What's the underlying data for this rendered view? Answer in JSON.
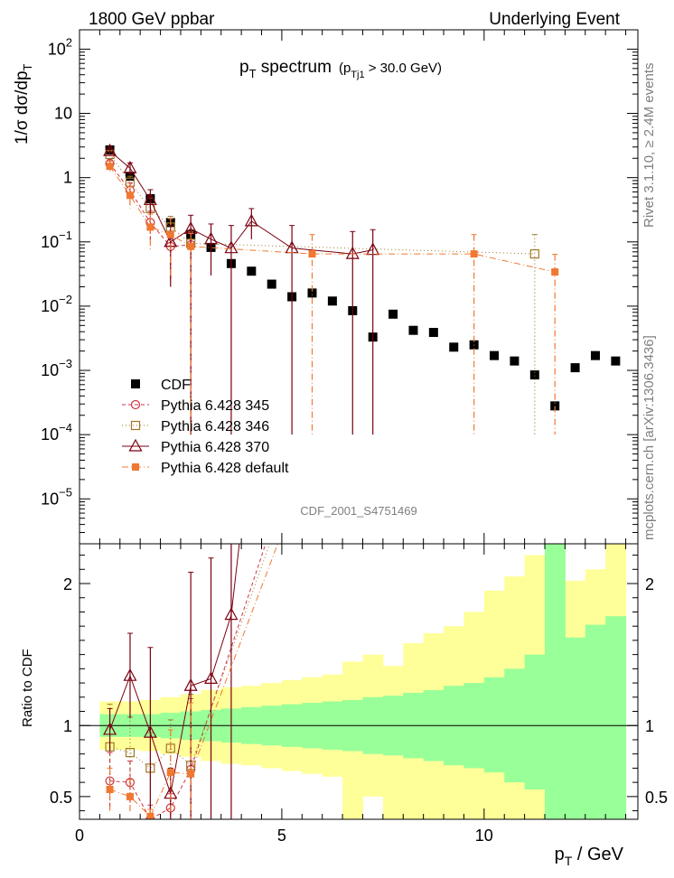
{
  "header": {
    "left": "1800 GeV ppbar",
    "right": "Underlying Event"
  },
  "side_text": {
    "rivet": "Rivet 3.1.10, ≥ 2.4M events",
    "mcplots": "mcplots.cern.ch [arXiv:1306.3436]"
  },
  "watermark": "CDF_2001_S4751469",
  "colors": {
    "cdf": "#000000",
    "p345": "#cc3344",
    "p346": "#a07828",
    "p370": "#7a0010",
    "pdefault": "#f07830",
    "band_inner": "#99ff99",
    "band_outer": "#ffff99"
  },
  "chart_data": [
    {
      "type": "scatter",
      "title": "p_T spectrum",
      "title_main": "p",
      "title_sub": "T",
      "title_word": " spectrum",
      "title_cond": "(p",
      "title_cond_sub": "Tj1",
      "title_cond_rest": " > 30.0 GeV)",
      "ylabel": "1/σ dσ/dp_T",
      "ylabel_text": "1/σ dσ/dp",
      "ylabel_sub": "T",
      "yscale": "log",
      "ylim": [
        2e-06,
        200
      ],
      "xlim": [
        0,
        13.8
      ],
      "y_ticks": [
        {
          "v": 100,
          "base": "10",
          "exp": "2"
        },
        {
          "v": 10,
          "base": "10",
          "exp": ""
        },
        {
          "v": 1,
          "base": "1",
          "exp": ""
        },
        {
          "v": 0.1,
          "base": "10",
          "exp": "−1"
        },
        {
          "v": 0.01,
          "base": "10",
          "exp": "−2"
        },
        {
          "v": 0.001,
          "base": "10",
          "exp": "−3"
        },
        {
          "v": 0.0001,
          "base": "10",
          "exp": "−4"
        },
        {
          "v": 1e-05,
          "base": "10",
          "exp": "−5"
        }
      ],
      "legend_position": "lower-left",
      "series": [
        {
          "name": "CDF",
          "key": "cdf",
          "marker": "filled-square",
          "x": [
            0.75,
            1.25,
            1.75,
            2.25,
            2.75,
            3.25,
            3.75,
            4.25,
            4.75,
            5.25,
            5.75,
            6.25,
            6.75,
            7.25,
            7.75,
            8.25,
            8.75,
            9.25,
            9.75,
            10.25,
            10.75,
            11.25,
            11.75,
            12.25,
            12.75,
            13.25
          ],
          "y": [
            2.7,
            1.05,
            0.47,
            0.2,
            0.13,
            0.082,
            0.046,
            0.035,
            0.022,
            0.014,
            0.016,
            0.012,
            0.0085,
            0.0033,
            0.0075,
            0.0042,
            0.0039,
            0.0023,
            0.0025,
            0.0017,
            0.0014,
            0.00085,
            0.00028,
            0.0011,
            0.0017,
            0.0014
          ]
        },
        {
          "name": "Pythia 6.428 345",
          "key": "p345",
          "marker": "open-circle",
          "dash": "4,3",
          "x": [
            0.75,
            1.25,
            1.75,
            2.25,
            2.75
          ],
          "y": [
            1.65,
            0.63,
            0.2,
            0.085,
            0.09
          ],
          "yerr_lo": [
            0.3,
            0.2,
            0.1,
            0.06,
            0.0899
          ],
          "yerr_hi": [
            0.3,
            0.2,
            0.1,
            0.06,
            0.05
          ]
        },
        {
          "name": "Pythia 6.428 346",
          "key": "p346",
          "marker": "open-square",
          "dash": "1,3",
          "x": [
            0.75,
            1.25,
            1.75,
            2.25,
            2.75,
            11.25
          ],
          "y": [
            2.3,
            0.85,
            0.33,
            0.17,
            0.095,
            0.065
          ],
          "yerr_lo": [
            0.3,
            0.2,
            0.15,
            0.08,
            0.0949,
            0.0649
          ],
          "yerr_hi": [
            0.3,
            0.2,
            0.15,
            0.08,
            0.05,
            0.065
          ]
        },
        {
          "name": "Pythia 6.428 370",
          "key": "p370",
          "marker": "open-triangle",
          "dash": "",
          "x": [
            0.75,
            1.25,
            1.75,
            2.25,
            2.75,
            3.25,
            3.75,
            4.25,
            5.25,
            6.75,
            7.25
          ],
          "y": [
            2.6,
            1.4,
            0.45,
            0.1,
            0.16,
            0.11,
            0.08,
            0.21,
            0.08,
            0.065,
            0.075
          ],
          "yerr_lo": [
            0.3,
            0.3,
            0.2,
            0.08,
            0.1599,
            0.08,
            0.0799,
            0.1,
            0.0799,
            0.0649,
            0.0749
          ],
          "yerr_hi": [
            0.3,
            0.3,
            0.2,
            0.08,
            0.1,
            0.08,
            0.1,
            0.12,
            0.1,
            0.08,
            0.08
          ]
        },
        {
          "name": "Pythia 6.428 default",
          "key": "pdefault",
          "marker": "filled-small-square",
          "dash": "7,3,1,3",
          "x": [
            0.75,
            1.25,
            1.75,
            2.25,
            2.75,
            5.75,
            9.75,
            11.75
          ],
          "y": [
            1.5,
            0.53,
            0.17,
            0.13,
            0.085,
            0.065,
            0.065,
            0.034
          ],
          "yerr_lo": [
            0.3,
            0.2,
            0.1,
            0.1,
            0.0849,
            0.0649,
            0.0649,
            0.0339
          ],
          "yerr_hi": [
            0.3,
            0.2,
            0.1,
            0.1,
            0.05,
            0.065,
            0.065,
            0.03
          ]
        }
      ]
    },
    {
      "type": "line",
      "ylabel": "Ratio to CDF",
      "xlabel": "p_T / GeV",
      "xlabel_main": "p",
      "xlabel_sub": "T",
      "xlabel_rest": " / GeV",
      "xlim": [
        0,
        13.8
      ],
      "ylim": [
        0.34,
        2.28
      ],
      "x_ticks": [
        0,
        5,
        10
      ],
      "y_ticks": [
        0.5,
        1,
        2
      ],
      "bands": {
        "edges": [
          0.5,
          1,
          1.5,
          2,
          2.5,
          3,
          3.5,
          4,
          4.5,
          5,
          5.5,
          6,
          6.5,
          7,
          7.5,
          8,
          8.5,
          9,
          9.5,
          10,
          10.5,
          11,
          11.5,
          12,
          12.5,
          13,
          13.5
        ],
        "inner_lo": [
          0.92,
          0.92,
          0.92,
          0.91,
          0.9,
          0.89,
          0.88,
          0.87,
          0.86,
          0.85,
          0.84,
          0.83,
          0.82,
          0.8,
          0.79,
          0.77,
          0.75,
          0.72,
          0.7,
          0.67,
          0.6,
          0.55,
          0.34,
          0.34,
          0.34,
          0.34
        ],
        "inner_hi": [
          1.08,
          1.08,
          1.08,
          1.09,
          1.1,
          1.11,
          1.12,
          1.13,
          1.14,
          1.15,
          1.16,
          1.17,
          1.18,
          1.2,
          1.21,
          1.23,
          1.25,
          1.28,
          1.3,
          1.34,
          1.4,
          1.5,
          2.28,
          1.62,
          1.71,
          1.77
        ],
        "outer_lo": [
          0.83,
          0.83,
          0.82,
          0.8,
          0.78,
          0.75,
          0.73,
          0.72,
          0.7,
          0.68,
          0.66,
          0.64,
          0.34,
          0.5,
          0.34,
          0.34,
          0.34,
          0.34,
          0.34,
          0.34,
          0.34,
          0.34,
          0.34,
          0.34,
          0.34,
          0.34
        ],
        "outer_hi": [
          1.17,
          1.17,
          1.18,
          1.2,
          1.22,
          1.25,
          1.27,
          1.28,
          1.3,
          1.32,
          1.34,
          1.36,
          1.45,
          1.5,
          1.42,
          1.58,
          1.65,
          1.7,
          1.8,
          1.95,
          2.05,
          2.2,
          2.28,
          2.02,
          2.1,
          2.28
        ]
      },
      "series": [
        {
          "name": "Pythia 6.428 345",
          "key": "p345",
          "marker": "open-circle",
          "dash": "4,3",
          "x": [
            0.75,
            1.25,
            1.75,
            2.25,
            2.75,
            4.6
          ],
          "y": [
            0.61,
            0.6,
            0.34,
            0.42,
            0.69,
            2.28
          ],
          "yerr_lo": [
            0.2,
            0.15,
            0.1,
            0.1,
            0.35,
            0
          ],
          "yerr_hi": [
            0.2,
            0.15,
            0.1,
            0.1,
            0.5,
            0
          ],
          "marker_count": 5
        },
        {
          "name": "Pythia 6.428 346",
          "key": "p346",
          "marker": "open-square",
          "dash": "1,3",
          "x": [
            0.75,
            1.25,
            1.75,
            2.25,
            2.75,
            4.7
          ],
          "y": [
            0.85,
            0.81,
            0.7,
            0.84,
            0.72,
            2.28
          ],
          "yerr_lo": [
            0.3,
            0.25,
            0.25,
            0.2,
            0.38,
            0
          ],
          "yerr_hi": [
            0.3,
            0.25,
            0.25,
            0.2,
            0.5,
            0
          ],
          "marker_count": 5
        },
        {
          "name": "Pythia 6.428 370",
          "key": "p370",
          "marker": "open-triangle",
          "dash": "",
          "x": [
            0.75,
            1.25,
            1.75,
            2.25,
            2.75,
            3.25,
            3.75,
            3.95
          ],
          "y": [
            0.97,
            1.35,
            0.95,
            0.52,
            1.28,
            1.33,
            1.78,
            2.28
          ],
          "yerr_lo": [
            0.15,
            0.3,
            0.6,
            0.18,
            0.95,
            0.99,
            1.44,
            0
          ],
          "yerr_hi": [
            0.15,
            0.3,
            0.6,
            0.18,
            0.8,
            0.85,
            0.6,
            0
          ],
          "marker_count": 7
        },
        {
          "name": "Pythia 6.428 default",
          "key": "pdefault",
          "marker": "filled-small-square",
          "dash": "7,3,1,3",
          "x": [
            0.75,
            1.25,
            1.75,
            2.25,
            2.75,
            4.9
          ],
          "y": [
            0.55,
            0.5,
            0.36,
            0.67,
            0.66,
            2.28
          ],
          "yerr_lo": [
            0.15,
            0.12,
            0.05,
            0.3,
            0.32,
            0
          ],
          "yerr_hi": [
            0.15,
            0.12,
            0.05,
            0.3,
            0.5,
            0
          ],
          "marker_count": 5
        }
      ]
    }
  ]
}
